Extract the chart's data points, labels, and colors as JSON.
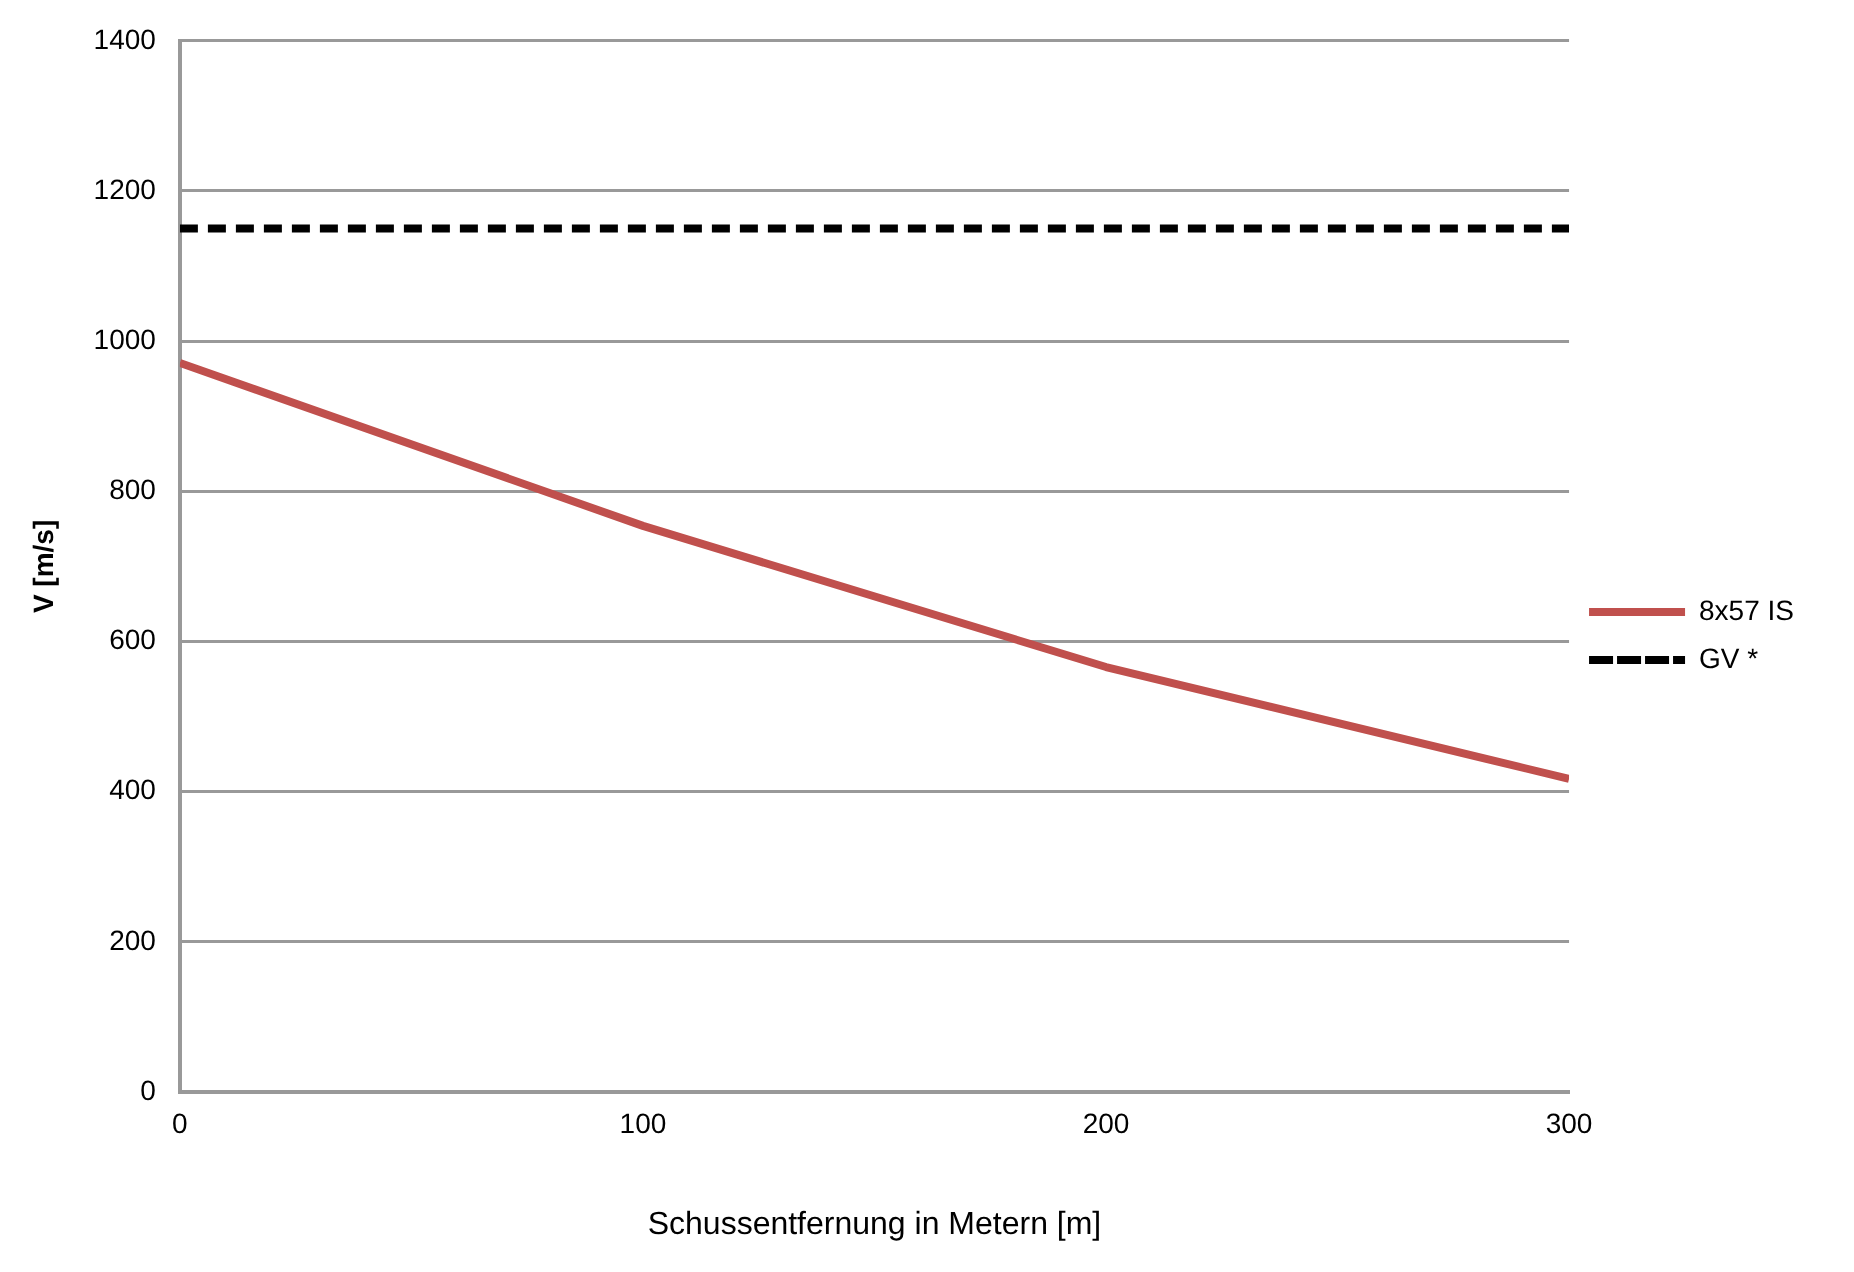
{
  "chart_data": {
    "type": "line",
    "xlabel": "Schussentfernung in Metern [m]",
    "ylabel": "V [m/s]",
    "x": [
      0,
      100,
      200,
      300
    ],
    "series": [
      {
        "name": "8x57 IS",
        "color": "#c0504d",
        "values": [
          971,
          754,
          566,
          417
        ],
        "line_style": "solid"
      },
      {
        "name": "GV *",
        "color": "#000000",
        "x": [
          0,
          300
        ],
        "values": [
          1150,
          1150
        ],
        "line_style": "dashed"
      }
    ],
    "xlim": [
      0,
      300
    ],
    "xticks": [
      0,
      100,
      200,
      300
    ],
    "ylim": [
      0,
      1400
    ],
    "yticks": [
      0,
      200,
      400,
      600,
      800,
      1000,
      1200,
      1400
    ],
    "grid": "y",
    "legend": "right",
    "marker": "none"
  }
}
